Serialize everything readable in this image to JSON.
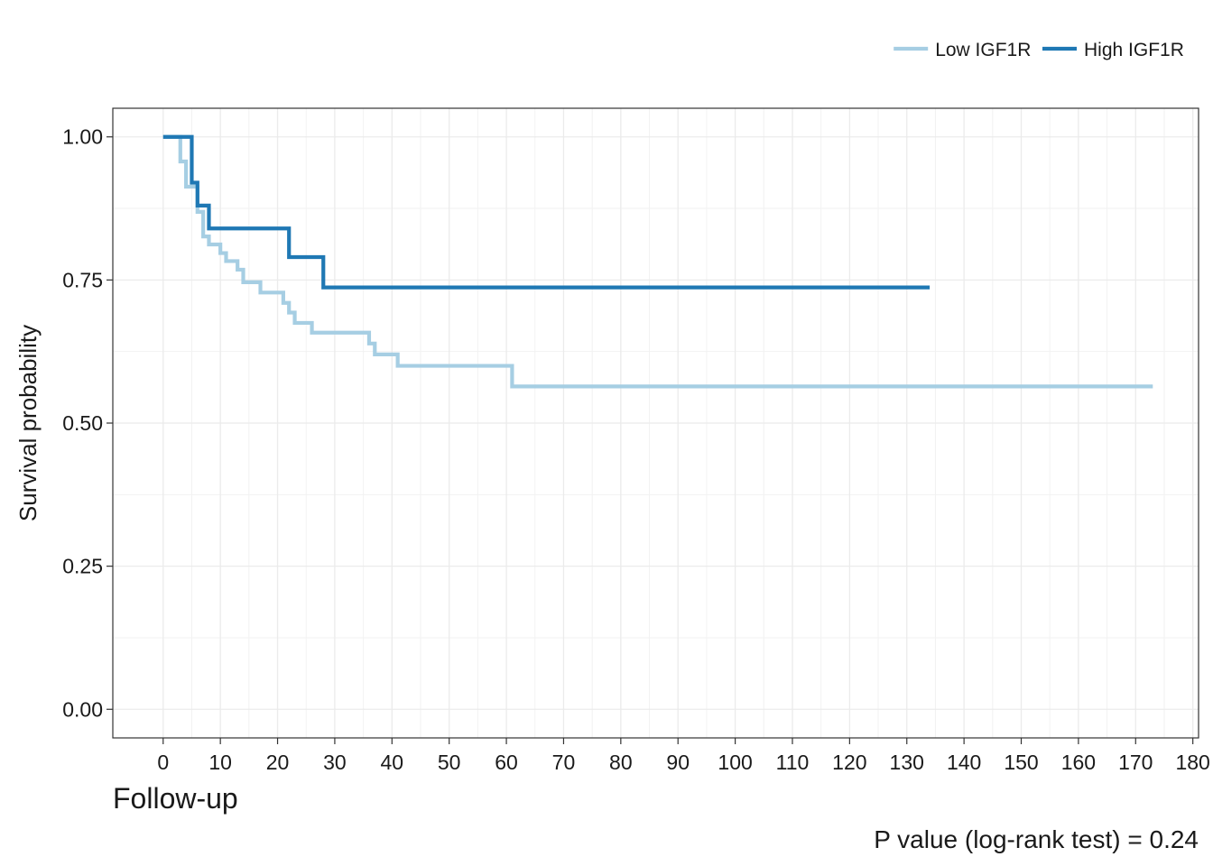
{
  "chart_data": {
    "type": "line",
    "step": true,
    "title": "",
    "xlabel": "Follow-up",
    "ylabel": "Survival probability",
    "xlim": [
      -8.8,
      181
    ],
    "ylim": [
      -0.05,
      1.05
    ],
    "xticks": [
      0,
      10,
      20,
      30,
      40,
      50,
      60,
      70,
      80,
      90,
      100,
      110,
      120,
      130,
      140,
      150,
      160,
      170,
      180
    ],
    "yticks": [
      0,
      0.25,
      0.5,
      0.75,
      1.0
    ],
    "ytick_labels": [
      "0.00",
      "0.25",
      "0.50",
      "0.75",
      "1.00"
    ],
    "grid": true,
    "legend_position": "top-right",
    "annotation": "P value (log-rank test) = 0.24",
    "series": [
      {
        "name": "Low IGF1R",
        "color": "#a6cee3",
        "points": [
          [
            0,
            1.0
          ],
          [
            3,
            0.957
          ],
          [
            4,
            0.913
          ],
          [
            6,
            0.869
          ],
          [
            7,
            0.826
          ],
          [
            8,
            0.812
          ],
          [
            10,
            0.797
          ],
          [
            11,
            0.783
          ],
          [
            13,
            0.768
          ],
          [
            14,
            0.746
          ],
          [
            17,
            0.728
          ],
          [
            21,
            0.71
          ],
          [
            22,
            0.693
          ],
          [
            23,
            0.675
          ],
          [
            26,
            0.658
          ],
          [
            36,
            0.639
          ],
          [
            37,
            0.62
          ],
          [
            41,
            0.6
          ],
          [
            61,
            0.564
          ],
          [
            173,
            0.564
          ]
        ]
      },
      {
        "name": "High IGF1R",
        "color": "#1f78b4",
        "points": [
          [
            0,
            1.0
          ],
          [
            5,
            0.92
          ],
          [
            6,
            0.88
          ],
          [
            8,
            0.84
          ],
          [
            22,
            0.79
          ],
          [
            28,
            0.737
          ],
          [
            134,
            0.737
          ]
        ]
      }
    ]
  }
}
